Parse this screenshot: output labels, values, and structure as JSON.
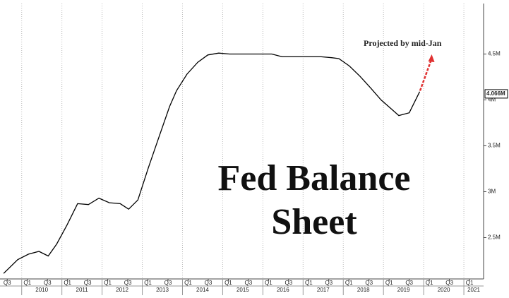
{
  "chart_data": {
    "type": "line",
    "title": "Fed Balance Sheet",
    "annotation": "Projected by mid-Jan",
    "xlim": [
      2009.32,
      2021.35
    ],
    "ylim": [
      2.05,
      5.05
    ],
    "yticks": [
      {
        "value": 2.5,
        "label": "2.5M"
      },
      {
        "value": 3,
        "label": "3M"
      },
      {
        "value": 3.5,
        "label": "3.5M"
      },
      {
        "value": 4,
        "label": "4M"
      },
      {
        "value": 4.5,
        "label": "4.5M"
      }
    ],
    "xticks": [
      {
        "value": 2009.5,
        "label": "Q3"
      },
      {
        "value": 2010,
        "label": "Q1"
      },
      {
        "value": 2010.5,
        "label": "Q3"
      },
      {
        "value": 2011,
        "label": "Q1"
      },
      {
        "value": 2011.5,
        "label": "Q3"
      },
      {
        "value": 2012,
        "label": "Q1"
      },
      {
        "value": 2012.5,
        "label": "Q3"
      },
      {
        "value": 2013,
        "label": "Q1"
      },
      {
        "value": 2013.5,
        "label": "Q3"
      },
      {
        "value": 2014,
        "label": "Q1"
      },
      {
        "value": 2014.5,
        "label": "Q3"
      },
      {
        "value": 2015,
        "label": "Q1"
      },
      {
        "value": 2015.5,
        "label": "Q3"
      },
      {
        "value": 2016,
        "label": "Q1"
      },
      {
        "value": 2016.5,
        "label": "Q3"
      },
      {
        "value": 2017,
        "label": "Q1"
      },
      {
        "value": 2017.5,
        "label": "Q3"
      },
      {
        "value": 2018,
        "label": "Q1"
      },
      {
        "value": 2018.5,
        "label": "Q3"
      },
      {
        "value": 2019,
        "label": "Q1"
      },
      {
        "value": 2019.5,
        "label": "Q3"
      },
      {
        "value": 2020,
        "label": "Q1"
      },
      {
        "value": 2020.5,
        "label": "Q3"
      },
      {
        "value": 2021,
        "label": "Q1"
      }
    ],
    "year_ticks": [
      {
        "value": 2010,
        "label": "2010"
      },
      {
        "value": 2011,
        "label": "2011"
      },
      {
        "value": 2012,
        "label": "2012"
      },
      {
        "value": 2013,
        "label": "2013"
      },
      {
        "value": 2014,
        "label": "2014"
      },
      {
        "value": 2015,
        "label": "2015"
      },
      {
        "value": 2016,
        "label": "2016"
      },
      {
        "value": 2017,
        "label": "2017"
      },
      {
        "value": 2018,
        "label": "2018"
      },
      {
        "value": 2019,
        "label": "2019"
      },
      {
        "value": 2020,
        "label": "2020"
      },
      {
        "value": 2021,
        "label": "2021"
      }
    ],
    "last_value": {
      "value": 4.066,
      "label": "4.066M"
    },
    "series": [
      {
        "color": "#000000",
        "dashed": false,
        "x": [
          2009.41,
          2009.76,
          2010.03,
          2010.29,
          2010.52,
          2010.73,
          2010.99,
          2011.25,
          2011.52,
          2011.78,
          2012.04,
          2012.31,
          2012.52,
          2012.75,
          2013.01,
          2013.27,
          2013.54,
          2013.71,
          2013.97,
          2014.24,
          2014.49,
          2014.76,
          2015.03,
          2015.29,
          2015.55,
          2015.82,
          2016.08,
          2016.34,
          2016.61,
          2016.87,
          2017.04,
          2017.31,
          2017.57,
          2017.75,
          2018.01,
          2018.27,
          2018.54,
          2018.8,
          2019.06,
          2019.24,
          2019.5,
          2019.76
        ],
        "values": [
          2.11,
          2.26,
          2.32,
          2.35,
          2.3,
          2.43,
          2.64,
          2.87,
          2.86,
          2.93,
          2.88,
          2.87,
          2.81,
          2.91,
          3.26,
          3.59,
          3.93,
          4.1,
          4.28,
          4.41,
          4.49,
          4.51,
          4.5,
          4.5,
          4.5,
          4.5,
          4.5,
          4.47,
          4.47,
          4.47,
          4.47,
          4.47,
          4.46,
          4.45,
          4.37,
          4.26,
          4.13,
          4.0,
          3.9,
          3.83,
          3.86,
          4.09
        ]
      },
      {
        "color": "#e03030",
        "dashed": true,
        "x": [
          2019.77,
          2020.06
        ],
        "values": [
          4.1,
          4.45
        ]
      }
    ]
  }
}
